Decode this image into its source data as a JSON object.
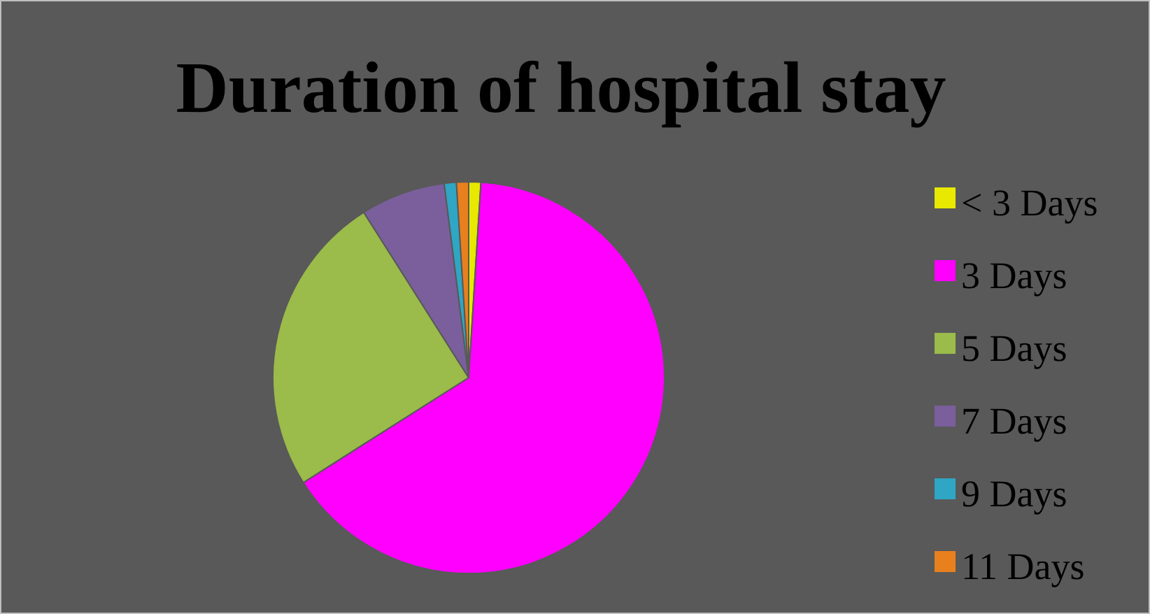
{
  "chart_data": {
    "type": "pie",
    "title": "Duration of hospital stay",
    "categories": [
      "< 3 Days",
      "3 Days",
      "5 Days",
      "7 Days",
      "9 Days",
      "11 Days"
    ],
    "values": [
      1,
      65,
      25,
      7,
      1,
      1
    ],
    "colors": [
      "#e8e800",
      "#ff00ff",
      "#9bbb4a",
      "#7a5f9c",
      "#2fa6c4",
      "#e8801e"
    ],
    "legend": "right"
  }
}
